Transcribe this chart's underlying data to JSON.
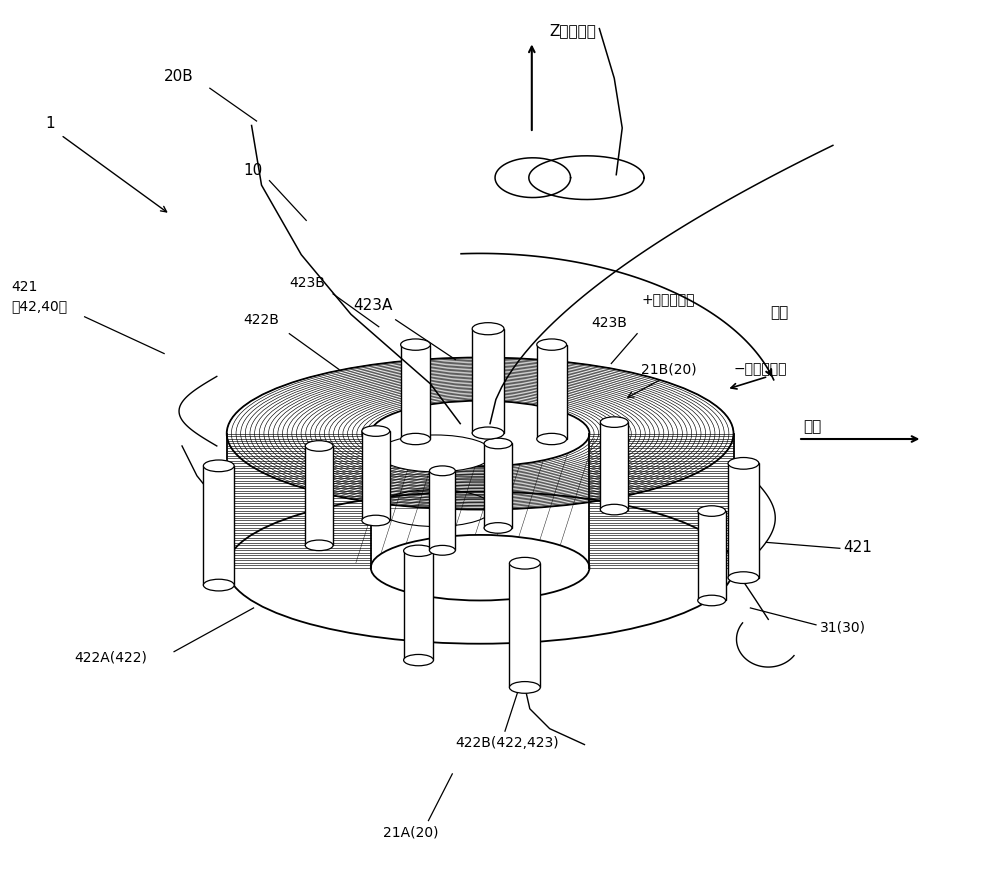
{
  "bg_color": "#ffffff",
  "line_color": "#000000",
  "fig_width": 10.0,
  "fig_height": 8.81,
  "labels": {
    "Z_axis": "Z（轴向）",
    "plus_dir": "+（逆时针）",
    "minus_dir": "−（顺时针）",
    "zhou_xiang": "周向",
    "jing_xiang": "径向",
    "ref_1": "1",
    "ref_10": "10",
    "ref_20B": "20B",
    "ref_421_top": "421\n（42,40）",
    "ref_421_right": "421",
    "ref_422A": "422A(422)",
    "ref_422B_top": "422B",
    "ref_422B_bot": "422B(422,423)",
    "ref_423A": "423A",
    "ref_423B_left": "423B",
    "ref_423B_right": "423B",
    "ref_21A": "21A(20)",
    "ref_21B": "21B(20)",
    "ref_31": "31(30)"
  }
}
